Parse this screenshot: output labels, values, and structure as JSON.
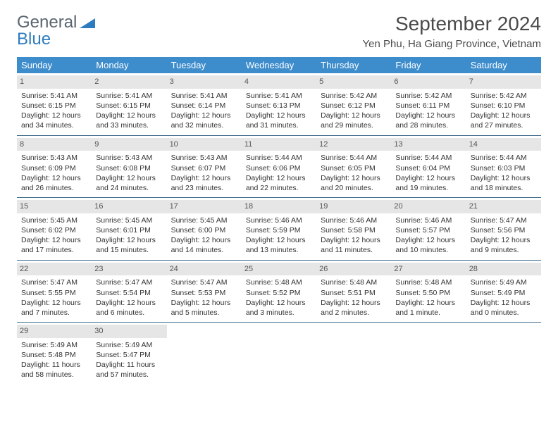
{
  "brand": {
    "part1": "General",
    "part2": "Blue"
  },
  "title": "September 2024",
  "location": "Yen Phu, Ha Giang Province, Vietnam",
  "colors": {
    "header_bg": "#3d8ccc",
    "header_text": "#ffffff",
    "daynum_bg": "#e6e6e6",
    "row_divider": "#3d6a8a",
    "text": "#333333",
    "logo_gray": "#5a6570",
    "logo_blue": "#2e7cc0",
    "page_bg": "#ffffff"
  },
  "weekdays": [
    "Sunday",
    "Monday",
    "Tuesday",
    "Wednesday",
    "Thursday",
    "Friday",
    "Saturday"
  ],
  "weeks": [
    [
      {
        "day": "1",
        "sunrise": "Sunrise: 5:41 AM",
        "sunset": "Sunset: 6:15 PM",
        "daylight1": "Daylight: 12 hours",
        "daylight2": "and 34 minutes."
      },
      {
        "day": "2",
        "sunrise": "Sunrise: 5:41 AM",
        "sunset": "Sunset: 6:15 PM",
        "daylight1": "Daylight: 12 hours",
        "daylight2": "and 33 minutes."
      },
      {
        "day": "3",
        "sunrise": "Sunrise: 5:41 AM",
        "sunset": "Sunset: 6:14 PM",
        "daylight1": "Daylight: 12 hours",
        "daylight2": "and 32 minutes."
      },
      {
        "day": "4",
        "sunrise": "Sunrise: 5:41 AM",
        "sunset": "Sunset: 6:13 PM",
        "daylight1": "Daylight: 12 hours",
        "daylight2": "and 31 minutes."
      },
      {
        "day": "5",
        "sunrise": "Sunrise: 5:42 AM",
        "sunset": "Sunset: 6:12 PM",
        "daylight1": "Daylight: 12 hours",
        "daylight2": "and 29 minutes."
      },
      {
        "day": "6",
        "sunrise": "Sunrise: 5:42 AM",
        "sunset": "Sunset: 6:11 PM",
        "daylight1": "Daylight: 12 hours",
        "daylight2": "and 28 minutes."
      },
      {
        "day": "7",
        "sunrise": "Sunrise: 5:42 AM",
        "sunset": "Sunset: 6:10 PM",
        "daylight1": "Daylight: 12 hours",
        "daylight2": "and 27 minutes."
      }
    ],
    [
      {
        "day": "8",
        "sunrise": "Sunrise: 5:43 AM",
        "sunset": "Sunset: 6:09 PM",
        "daylight1": "Daylight: 12 hours",
        "daylight2": "and 26 minutes."
      },
      {
        "day": "9",
        "sunrise": "Sunrise: 5:43 AM",
        "sunset": "Sunset: 6:08 PM",
        "daylight1": "Daylight: 12 hours",
        "daylight2": "and 24 minutes."
      },
      {
        "day": "10",
        "sunrise": "Sunrise: 5:43 AM",
        "sunset": "Sunset: 6:07 PM",
        "daylight1": "Daylight: 12 hours",
        "daylight2": "and 23 minutes."
      },
      {
        "day": "11",
        "sunrise": "Sunrise: 5:44 AM",
        "sunset": "Sunset: 6:06 PM",
        "daylight1": "Daylight: 12 hours",
        "daylight2": "and 22 minutes."
      },
      {
        "day": "12",
        "sunrise": "Sunrise: 5:44 AM",
        "sunset": "Sunset: 6:05 PM",
        "daylight1": "Daylight: 12 hours",
        "daylight2": "and 20 minutes."
      },
      {
        "day": "13",
        "sunrise": "Sunrise: 5:44 AM",
        "sunset": "Sunset: 6:04 PM",
        "daylight1": "Daylight: 12 hours",
        "daylight2": "and 19 minutes."
      },
      {
        "day": "14",
        "sunrise": "Sunrise: 5:44 AM",
        "sunset": "Sunset: 6:03 PM",
        "daylight1": "Daylight: 12 hours",
        "daylight2": "and 18 minutes."
      }
    ],
    [
      {
        "day": "15",
        "sunrise": "Sunrise: 5:45 AM",
        "sunset": "Sunset: 6:02 PM",
        "daylight1": "Daylight: 12 hours",
        "daylight2": "and 17 minutes."
      },
      {
        "day": "16",
        "sunrise": "Sunrise: 5:45 AM",
        "sunset": "Sunset: 6:01 PM",
        "daylight1": "Daylight: 12 hours",
        "daylight2": "and 15 minutes."
      },
      {
        "day": "17",
        "sunrise": "Sunrise: 5:45 AM",
        "sunset": "Sunset: 6:00 PM",
        "daylight1": "Daylight: 12 hours",
        "daylight2": "and 14 minutes."
      },
      {
        "day": "18",
        "sunrise": "Sunrise: 5:46 AM",
        "sunset": "Sunset: 5:59 PM",
        "daylight1": "Daylight: 12 hours",
        "daylight2": "and 13 minutes."
      },
      {
        "day": "19",
        "sunrise": "Sunrise: 5:46 AM",
        "sunset": "Sunset: 5:58 PM",
        "daylight1": "Daylight: 12 hours",
        "daylight2": "and 11 minutes."
      },
      {
        "day": "20",
        "sunrise": "Sunrise: 5:46 AM",
        "sunset": "Sunset: 5:57 PM",
        "daylight1": "Daylight: 12 hours",
        "daylight2": "and 10 minutes."
      },
      {
        "day": "21",
        "sunrise": "Sunrise: 5:47 AM",
        "sunset": "Sunset: 5:56 PM",
        "daylight1": "Daylight: 12 hours",
        "daylight2": "and 9 minutes."
      }
    ],
    [
      {
        "day": "22",
        "sunrise": "Sunrise: 5:47 AM",
        "sunset": "Sunset: 5:55 PM",
        "daylight1": "Daylight: 12 hours",
        "daylight2": "and 7 minutes."
      },
      {
        "day": "23",
        "sunrise": "Sunrise: 5:47 AM",
        "sunset": "Sunset: 5:54 PM",
        "daylight1": "Daylight: 12 hours",
        "daylight2": "and 6 minutes."
      },
      {
        "day": "24",
        "sunrise": "Sunrise: 5:47 AM",
        "sunset": "Sunset: 5:53 PM",
        "daylight1": "Daylight: 12 hours",
        "daylight2": "and 5 minutes."
      },
      {
        "day": "25",
        "sunrise": "Sunrise: 5:48 AM",
        "sunset": "Sunset: 5:52 PM",
        "daylight1": "Daylight: 12 hours",
        "daylight2": "and 3 minutes."
      },
      {
        "day": "26",
        "sunrise": "Sunrise: 5:48 AM",
        "sunset": "Sunset: 5:51 PM",
        "daylight1": "Daylight: 12 hours",
        "daylight2": "and 2 minutes."
      },
      {
        "day": "27",
        "sunrise": "Sunrise: 5:48 AM",
        "sunset": "Sunset: 5:50 PM",
        "daylight1": "Daylight: 12 hours",
        "daylight2": "and 1 minute."
      },
      {
        "day": "28",
        "sunrise": "Sunrise: 5:49 AM",
        "sunset": "Sunset: 5:49 PM",
        "daylight1": "Daylight: 12 hours",
        "daylight2": "and 0 minutes."
      }
    ],
    [
      {
        "day": "29",
        "sunrise": "Sunrise: 5:49 AM",
        "sunset": "Sunset: 5:48 PM",
        "daylight1": "Daylight: 11 hours",
        "daylight2": "and 58 minutes."
      },
      {
        "day": "30",
        "sunrise": "Sunrise: 5:49 AM",
        "sunset": "Sunset: 5:47 PM",
        "daylight1": "Daylight: 11 hours",
        "daylight2": "and 57 minutes."
      },
      {
        "empty": true
      },
      {
        "empty": true
      },
      {
        "empty": true
      },
      {
        "empty": true
      },
      {
        "empty": true
      }
    ]
  ]
}
